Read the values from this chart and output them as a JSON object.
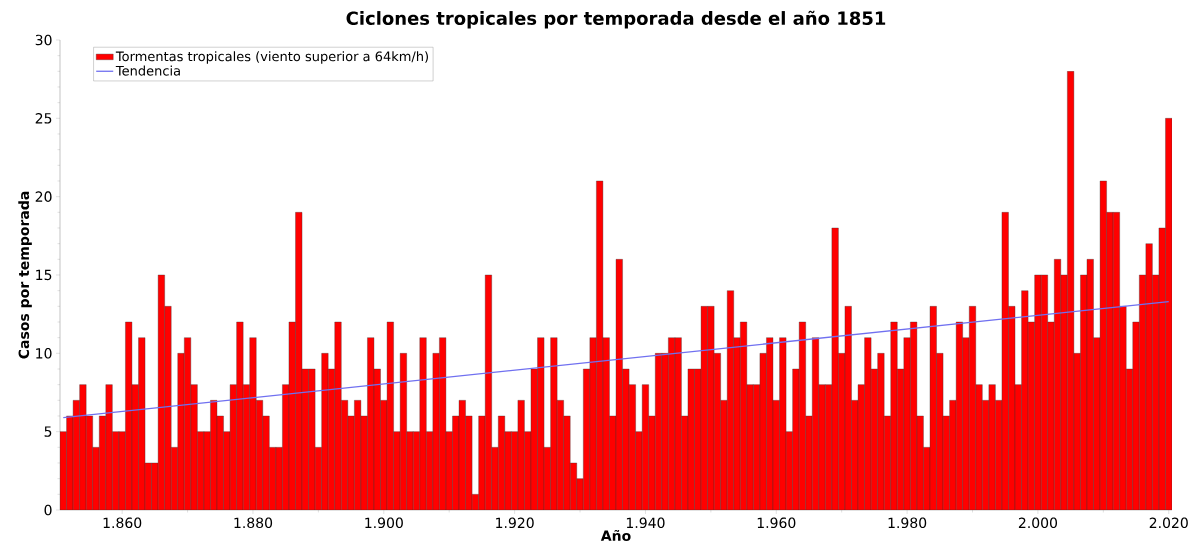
{
  "chart_data": {
    "type": "bar",
    "title": "Ciclones tropicales por temporada desde el año 1851",
    "xlabel": "Año",
    "ylabel": "Casos por temporada",
    "x": [
      1851,
      1852,
      1853,
      1854,
      1855,
      1856,
      1857,
      1858,
      1859,
      1860,
      1861,
      1862,
      1863,
      1864,
      1865,
      1866,
      1867,
      1868,
      1869,
      1870,
      1871,
      1872,
      1873,
      1874,
      1875,
      1876,
      1877,
      1878,
      1879,
      1880,
      1881,
      1882,
      1883,
      1884,
      1885,
      1886,
      1887,
      1888,
      1889,
      1890,
      1891,
      1892,
      1893,
      1894,
      1895,
      1896,
      1897,
      1898,
      1899,
      1900,
      1901,
      1902,
      1903,
      1904,
      1905,
      1906,
      1907,
      1908,
      1909,
      1910,
      1911,
      1912,
      1913,
      1914,
      1915,
      1916,
      1917,
      1918,
      1919,
      1920,
      1921,
      1922,
      1923,
      1924,
      1925,
      1926,
      1927,
      1928,
      1929,
      1930,
      1931,
      1932,
      1933,
      1934,
      1935,
      1936,
      1937,
      1938,
      1939,
      1940,
      1941,
      1942,
      1943,
      1944,
      1945,
      1946,
      1947,
      1948,
      1949,
      1950,
      1951,
      1952,
      1953,
      1954,
      1955,
      1956,
      1957,
      1958,
      1959,
      1960,
      1961,
      1962,
      1963,
      1964,
      1965,
      1966,
      1967,
      1968,
      1969,
      1970,
      1971,
      1972,
      1973,
      1974,
      1975,
      1976,
      1977,
      1978,
      1979,
      1980,
      1981,
      1982,
      1983,
      1984,
      1985,
      1986,
      1987,
      1988,
      1989,
      1990,
      1991,
      1992,
      1993,
      1994,
      1995,
      1996,
      1997,
      1998,
      1999,
      2000,
      2001,
      2002,
      2003,
      2004,
      2005,
      2006,
      2007,
      2008,
      2009,
      2010,
      2011,
      2012,
      2013,
      2014,
      2015,
      2016,
      2017,
      2018,
      2019,
      2020
    ],
    "series": [
      {
        "name": "Tormentas tropicales (viento superior a 64km/h)",
        "color": "#ff0000",
        "values": [
          5,
          6,
          7,
          8,
          6,
          4,
          6,
          8,
          5,
          5,
          12,
          8,
          11,
          3,
          3,
          15,
          13,
          4,
          10,
          11,
          8,
          5,
          5,
          7,
          6,
          5,
          8,
          12,
          8,
          11,
          7,
          6,
          4,
          4,
          8,
          12,
          19,
          9,
          9,
          4,
          10,
          9,
          12,
          7,
          6,
          7,
          6,
          11,
          9,
          7,
          12,
          5,
          10,
          5,
          5,
          11,
          5,
          10,
          11,
          5,
          6,
          7,
          6,
          1,
          6,
          15,
          4,
          6,
          5,
          5,
          7,
          5,
          9,
          11,
          4,
          11,
          7,
          6,
          3,
          2,
          9,
          11,
          21,
          11,
          6,
          16,
          9,
          8,
          5,
          8,
          6,
          10,
          10,
          11,
          11,
          6,
          9,
          9,
          13,
          13,
          10,
          7,
          14,
          11,
          12,
          8,
          8,
          10,
          11,
          7,
          11,
          5,
          9,
          12,
          6,
          11,
          8,
          8,
          18,
          10,
          13,
          7,
          8,
          11,
          9,
          10,
          6,
          12,
          9,
          11,
          12,
          6,
          4,
          13,
          10,
          6,
          7,
          12,
          11,
          13,
          8,
          7,
          8,
          7,
          19,
          13,
          8,
          14,
          12,
          15,
          15,
          12,
          16,
          15,
          28,
          10,
          15,
          16,
          11,
          21,
          19,
          19,
          13,
          9,
          12,
          15,
          17,
          15,
          18,
          25
        ]
      },
      {
        "name": "Tendencia",
        "type": "line",
        "color": "#7070f0",
        "x": [
          1851,
          2020
        ],
        "values": [
          5.9,
          13.3
        ]
      }
    ],
    "xlim": [
      1850.5,
      2020.5
    ],
    "ylim": [
      0,
      30
    ],
    "xticks": [
      {
        "value": 1860,
        "label": "1.860"
      },
      {
        "value": 1880,
        "label": "1.880"
      },
      {
        "value": 1900,
        "label": "1.900"
      },
      {
        "value": 1920,
        "label": "1.920"
      },
      {
        "value": 1940,
        "label": "1.940"
      },
      {
        "value": 1960,
        "label": "1.960"
      },
      {
        "value": 1980,
        "label": "1.980"
      },
      {
        "value": 2000,
        "label": "2.000"
      },
      {
        "value": 2020,
        "label": "2.020"
      }
    ],
    "yticks": [
      0,
      5,
      10,
      15,
      20,
      25,
      30
    ],
    "legend": "top left"
  }
}
